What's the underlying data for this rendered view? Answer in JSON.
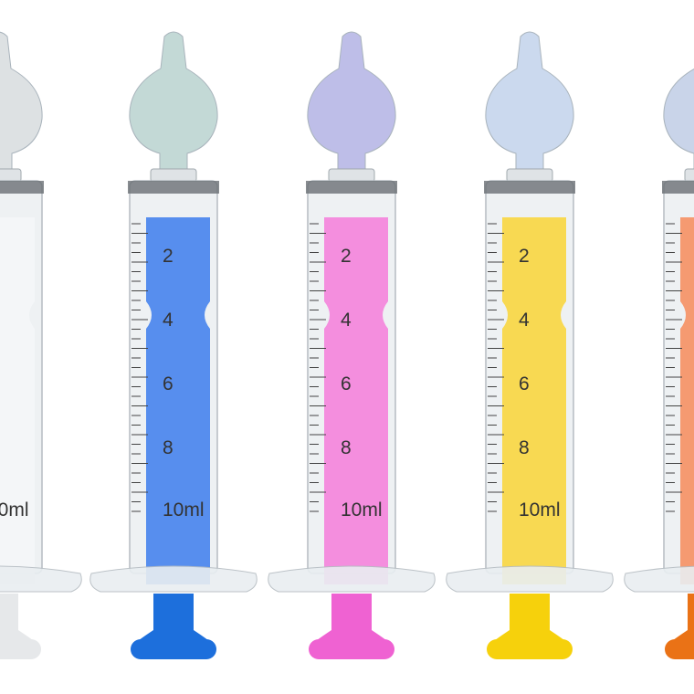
{
  "scale_labels": [
    "2",
    "4",
    "6",
    "8",
    "10ml"
  ],
  "syringes": [
    {
      "name": "clear",
      "liquid": "#f4f6f8",
      "cap": "#e6e8ea",
      "nozzle": "#d8dcdf"
    },
    {
      "name": "blue",
      "liquid": "#4a86ee",
      "cap": "#1d6fdc",
      "nozzle": "#b9d3cf"
    },
    {
      "name": "pink",
      "liquid": "#f486dc",
      "cap": "#ef62d2",
      "nozzle": "#b3b3e4"
    },
    {
      "name": "yellow",
      "liquid": "#f9d744",
      "cap": "#f6d10c",
      "nozzle": "#c3d3ec"
    },
    {
      "name": "orange",
      "liquid": "#f59366",
      "cap": "#ea7216",
      "nozzle": "#c0cde6"
    }
  ]
}
